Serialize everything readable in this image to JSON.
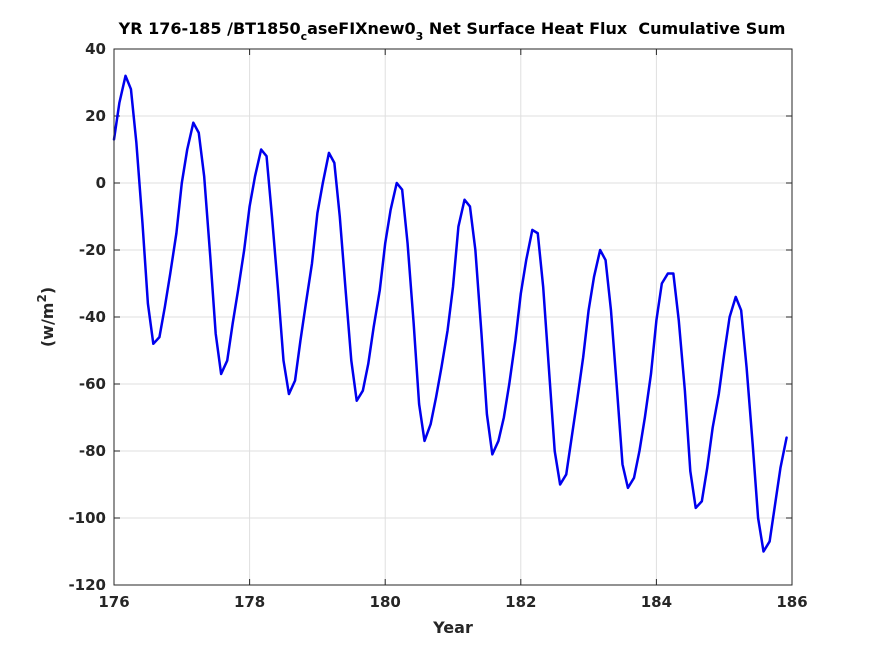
{
  "chart_data": {
    "type": "line",
    "title": {
      "main": "YR 176-185 /BT1850",
      "sub1": "c",
      "middle": "aseFIXnew0",
      "sub2": "3",
      "tail": " Net Surface Heat Flux  Cumulative Sum"
    },
    "xlabel": "Year",
    "ylabel": {
      "main": "(w/m",
      "sup": "2",
      "close": ")"
    },
    "xlim": [
      176,
      186
    ],
    "ylim": [
      -120,
      40
    ],
    "xticks": [
      176,
      178,
      180,
      182,
      184,
      186
    ],
    "yticks": [
      -120,
      -100,
      -80,
      -60,
      -40,
      -20,
      0,
      20,
      40
    ],
    "grid": true,
    "line_color": "#0000ee",
    "series": [
      {
        "x": [
          176.0,
          176.08,
          176.17,
          176.25,
          176.33,
          176.42,
          176.5,
          176.58,
          176.67,
          176.75,
          176.83,
          176.92,
          177.0,
          177.08,
          177.17,
          177.25,
          177.33,
          177.42,
          177.5,
          177.58,
          177.67,
          177.75,
          177.83,
          177.92,
          178.0,
          178.08,
          178.17,
          178.25,
          178.33,
          178.42,
          178.5,
          178.58,
          178.67,
          178.75,
          178.83,
          178.92,
          179.0,
          179.08,
          179.17,
          179.25,
          179.33,
          179.42,
          179.5,
          179.58,
          179.67,
          179.75,
          179.83,
          179.92,
          180.0,
          180.08,
          180.17,
          180.25,
          180.33,
          180.42,
          180.5,
          180.58,
          180.67,
          180.75,
          180.83,
          180.92,
          181.0,
          181.08,
          181.17,
          181.25,
          181.33,
          181.42,
          181.5,
          181.58,
          181.67,
          181.75,
          181.83,
          181.92,
          182.0,
          182.08,
          182.17,
          182.25,
          182.33,
          182.42,
          182.5,
          182.58,
          182.67,
          182.75,
          182.83,
          182.92,
          183.0,
          183.08,
          183.17,
          183.25,
          183.33,
          183.42,
          183.5,
          183.58,
          183.67,
          183.75,
          183.83,
          183.92,
          184.0,
          184.08,
          184.17,
          184.25,
          184.33,
          184.42,
          184.5,
          184.58,
          184.67,
          184.75,
          184.83,
          184.92,
          185.0,
          185.08,
          185.17,
          185.25,
          185.33,
          185.42,
          185.5,
          185.58,
          185.67,
          185.75,
          185.83,
          185.92
        ],
        "y": [
          13,
          24,
          32,
          28,
          12,
          -12,
          -36,
          -48,
          -46,
          -37,
          -27,
          -15,
          0,
          10,
          18,
          15,
          2,
          -22,
          -45,
          -57,
          -53,
          -42,
          -32,
          -20,
          -7,
          2,
          10,
          8,
          -10,
          -32,
          -53,
          -63,
          -59,
          -47,
          -36,
          -24,
          -9,
          0,
          9,
          6,
          -10,
          -33,
          -53,
          -65,
          -62,
          -54,
          -43,
          -32,
          -18,
          -8,
          0,
          -2,
          -18,
          -42,
          -66,
          -77,
          -72,
          -64,
          -55,
          -44,
          -31,
          -13,
          -5,
          -7,
          -20,
          -45,
          -69,
          -81,
          -77,
          -70,
          -60,
          -47,
          -33,
          -23,
          -14,
          -15,
          -31,
          -57,
          -80,
          -90,
          -87,
          -76,
          -65,
          -52,
          -38,
          -28,
          -20,
          -23,
          -38,
          -62,
          -84,
          -91,
          -88,
          -80,
          -70,
          -57,
          -41,
          -30,
          -27,
          -27,
          -41,
          -62,
          -86,
          -97,
          -95,
          -85,
          -73,
          -63,
          -51,
          -40,
          -34,
          -38,
          -55,
          -78,
          -100,
          -110,
          -107,
          -96,
          -85,
          -76
        ]
      }
    ]
  }
}
